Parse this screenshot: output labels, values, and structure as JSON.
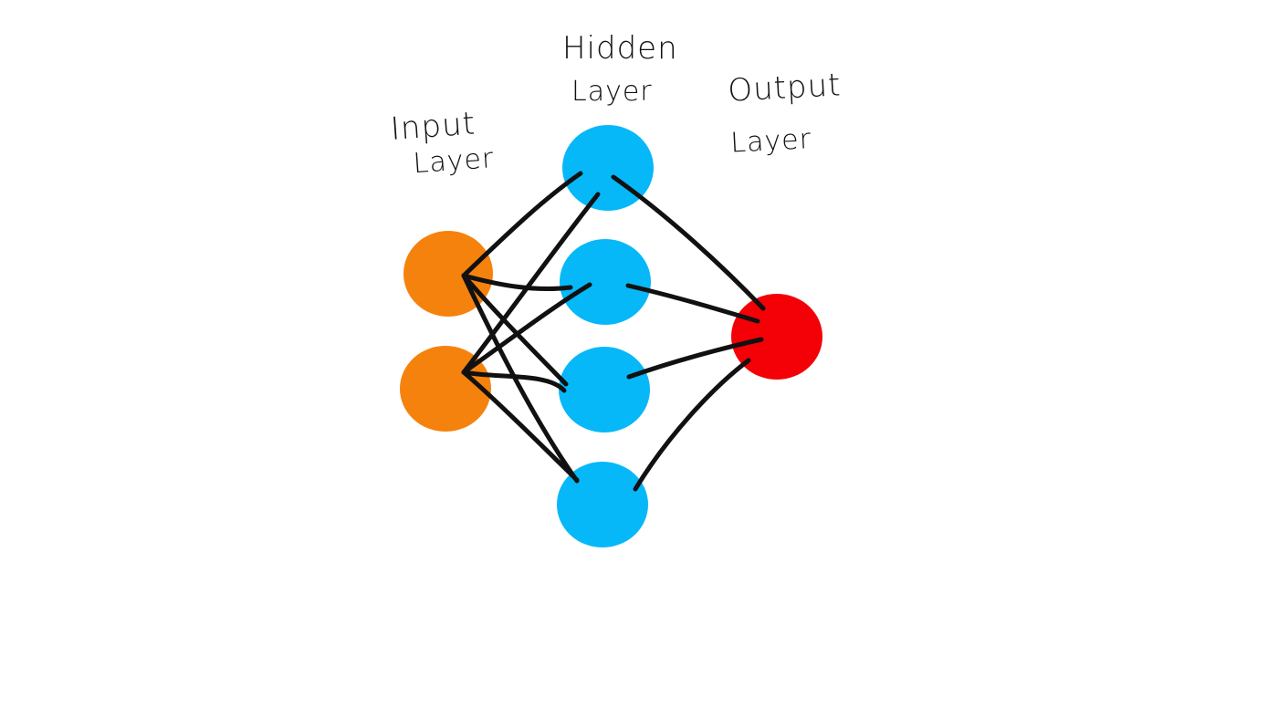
{
  "diagram": {
    "labels": {
      "input_line1": "Input",
      "input_line2": "Layer",
      "hidden_line1": "Hidden",
      "hidden_line2": "Layer",
      "output_line1": "Output",
      "output_line2": "Layer"
    },
    "colors": {
      "input_node": "#f5820c",
      "hidden_node": "#06b8f7",
      "output_node": "#f40007",
      "edge": "#111111"
    },
    "layers": [
      {
        "name": "input",
        "node_count": 2
      },
      {
        "name": "hidden",
        "node_count": 4
      },
      {
        "name": "output",
        "node_count": 1
      }
    ]
  }
}
